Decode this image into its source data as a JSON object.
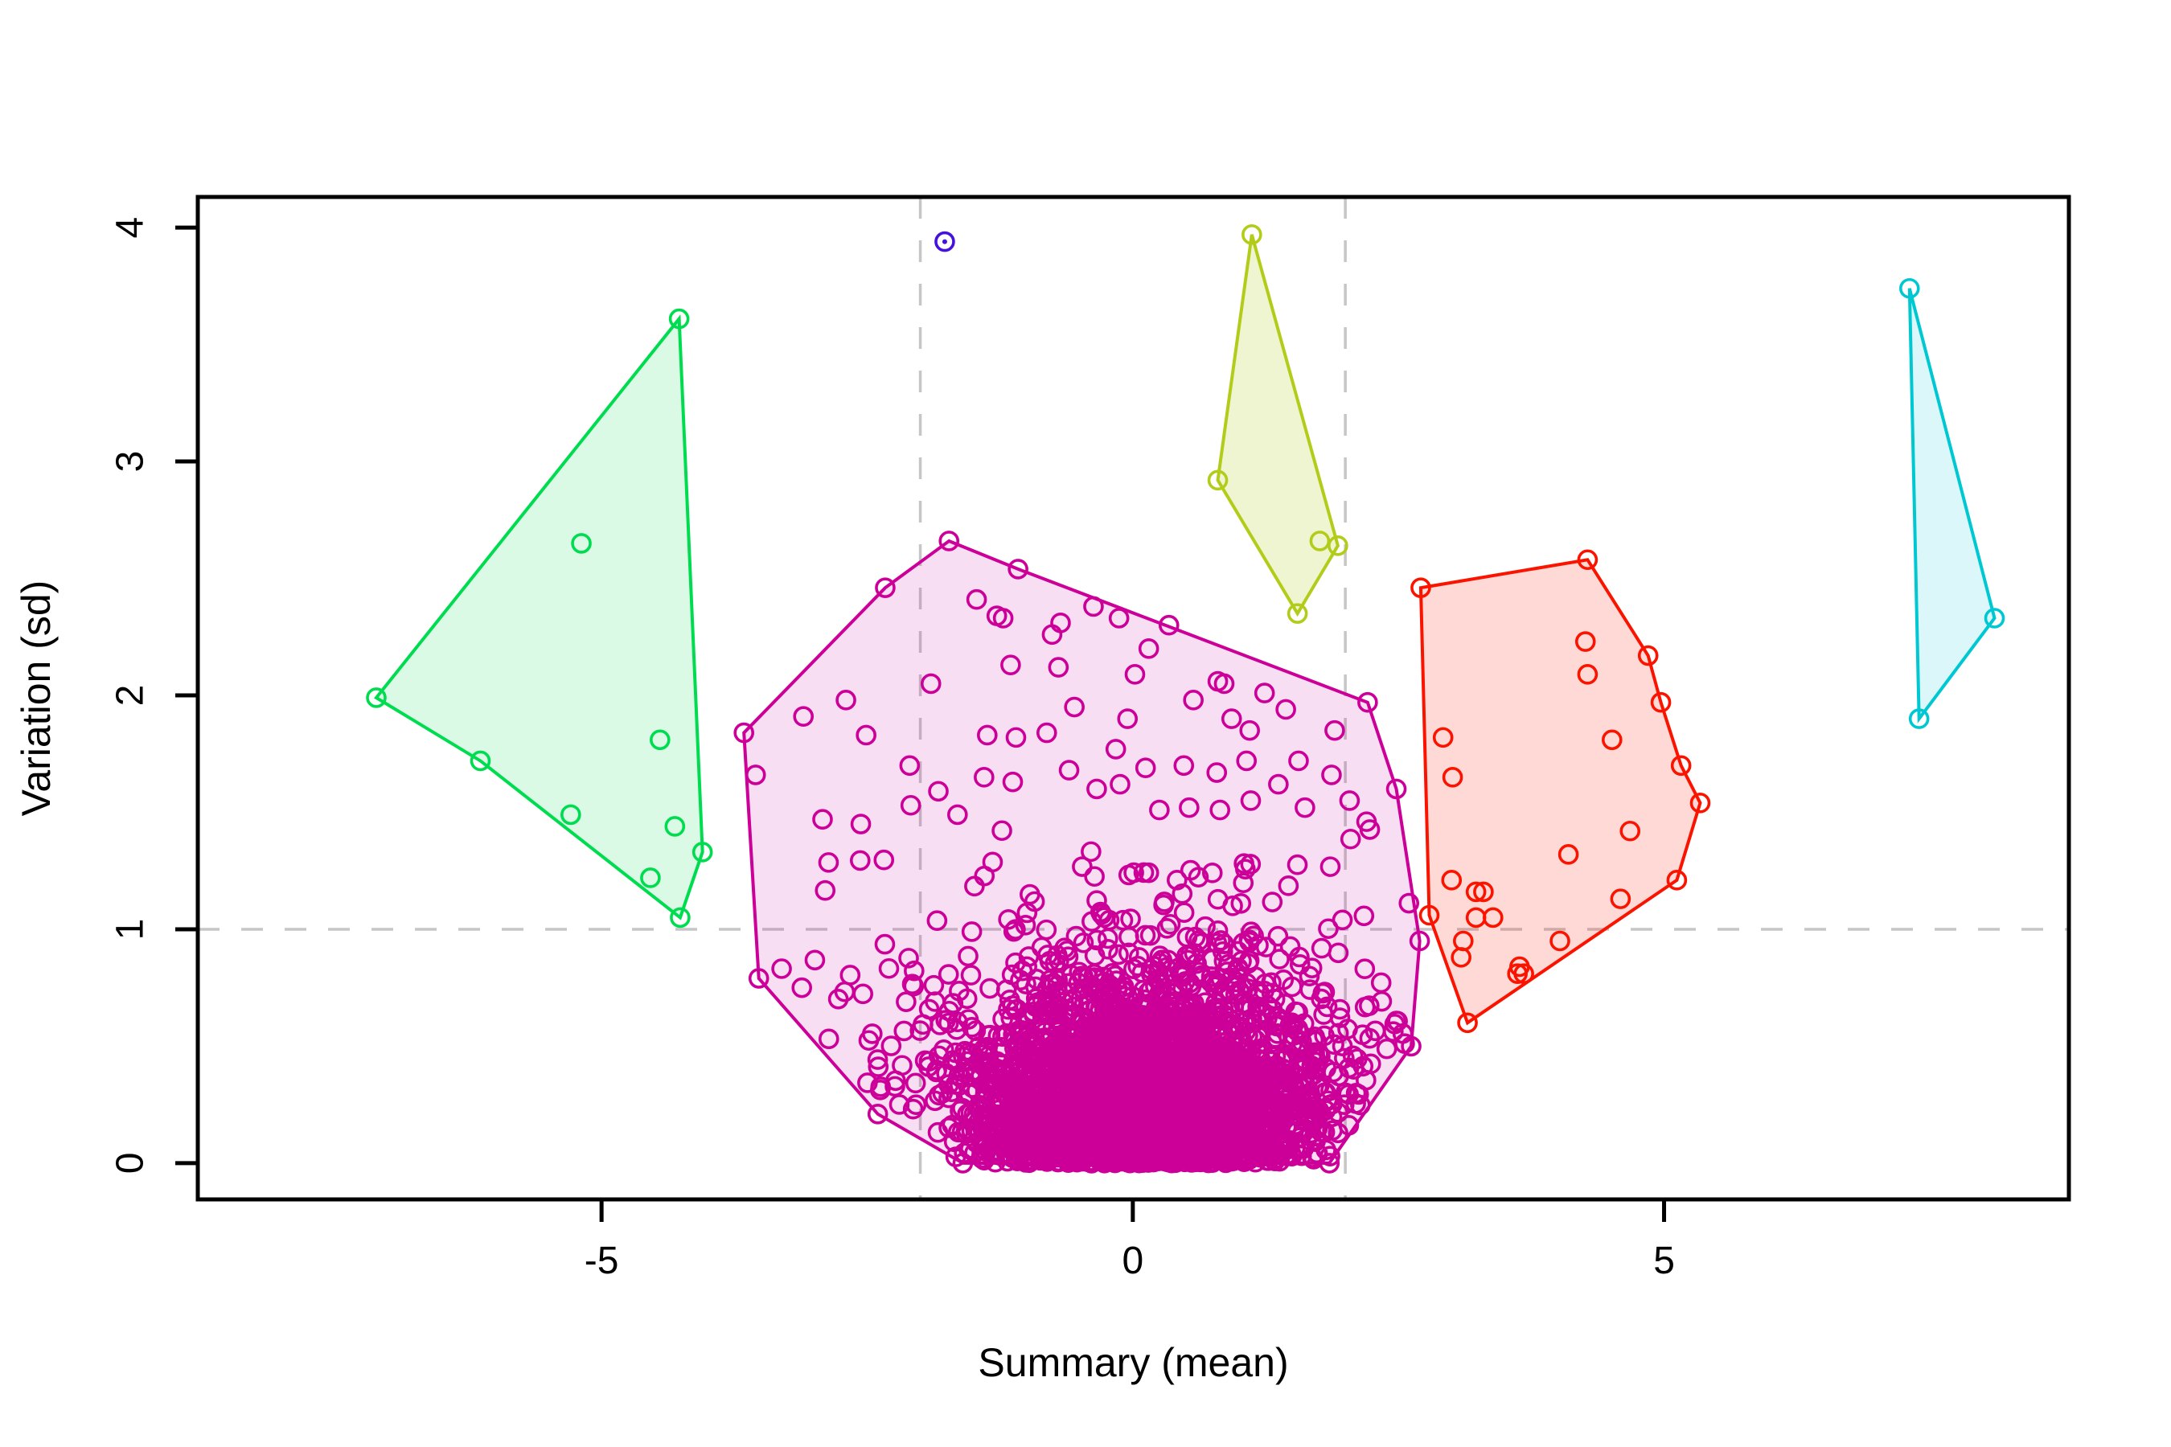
{
  "chart_data": {
    "type": "scatter",
    "title": "",
    "xlabel": "Summary (mean)",
    "ylabel": "Variation (sd)",
    "xlim": [
      -8.8,
      8.81
    ],
    "ylim": [
      -0.155,
      4.131
    ],
    "x_ticks": [
      -5,
      0,
      5
    ],
    "y_ticks": [
      0,
      1,
      2,
      3,
      4
    ],
    "grid": false,
    "legend": "none",
    "axis_color": "#000000",
    "reference_lines": {
      "style": "dashed",
      "color": "#C6C6C6",
      "vertical_x": [
        -2,
        2
      ],
      "horizontal_y": [
        1
      ]
    },
    "marker": {
      "shape": "open-circle",
      "radius": 11,
      "stroke_width": 3.6
    },
    "clusters": [
      {
        "name": "dense-magenta",
        "color": "#CC0099",
        "fill": "rgba(204,0,153,0.13)",
        "hull": [
          [
            -1.73,
            2.66
          ],
          [
            -1.08,
            2.54
          ],
          [
            2.21,
            1.97
          ],
          [
            2.48,
            1.6
          ],
          [
            2.7,
            0.95
          ],
          [
            2.62,
            0.5
          ],
          [
            1.85,
            0.0
          ],
          [
            -1.6,
            0.0
          ],
          [
            -2.4,
            0.21
          ],
          [
            -3.52,
            0.79
          ],
          [
            -3.66,
            1.84
          ],
          [
            -2.33,
            2.46
          ]
        ],
        "points": [
          [
            -1.47,
            2.41
          ],
          [
            -1.28,
            2.34
          ],
          [
            -1.22,
            2.33
          ],
          [
            -0.68,
            2.31
          ],
          [
            -0.37,
            2.38
          ],
          [
            -0.76,
            2.26
          ],
          [
            -0.13,
            2.33
          ],
          [
            0.34,
            2.3
          ],
          [
            -1.15,
            2.13
          ],
          [
            -0.7,
            2.12
          ],
          [
            0.02,
            2.09
          ],
          [
            0.57,
            1.98
          ],
          [
            0.8,
            2.06
          ],
          [
            0.86,
            2.05
          ],
          [
            1.24,
            2.01
          ],
          [
            1.44,
            1.94
          ],
          [
            -2.7,
            1.98
          ],
          [
            -3.1,
            1.91
          ],
          [
            -2.51,
            1.83
          ],
          [
            -2.1,
            1.7
          ],
          [
            -2.09,
            1.53
          ],
          [
            -1.83,
            1.59
          ],
          [
            -1.65,
            1.49
          ],
          [
            -1.37,
            1.83
          ],
          [
            -1.4,
            1.65
          ],
          [
            -1.1,
            1.82
          ],
          [
            -1.13,
            1.63
          ],
          [
            -0.81,
            1.84
          ],
          [
            -0.6,
            1.68
          ],
          [
            -0.34,
            1.6
          ],
          [
            -0.16,
            1.77
          ],
          [
            -0.12,
            1.62
          ],
          [
            0.12,
            1.69
          ],
          [
            0.25,
            1.51
          ],
          [
            0.48,
            1.7
          ],
          [
            0.53,
            1.52
          ],
          [
            0.79,
            1.67
          ],
          [
            0.82,
            1.51
          ],
          [
            1.07,
            1.72
          ],
          [
            1.11,
            1.55
          ],
          [
            1.37,
            1.62
          ],
          [
            1.56,
            1.72
          ],
          [
            1.62,
            1.52
          ],
          [
            1.87,
            1.66
          ],
          [
            2.04,
            1.55
          ],
          [
            2.2,
            1.46
          ],
          [
            -3.55,
            1.66
          ],
          [
            -2.92,
            1.47
          ],
          [
            -2.56,
            1.45
          ],
          [
            0.93,
            1.9
          ],
          [
            1.9,
            1.85
          ],
          [
            -0.05,
            1.9
          ],
          [
            -0.55,
            1.95
          ],
          [
            -1.9,
            2.05
          ],
          [
            0.15,
            2.2
          ],
          [
            1.1,
            1.85
          ]
        ],
        "dense_spec": {
          "note": "approximately 3800 additional unlabeled points forming a dense blob centered near x=0.1 with sd-like falloff in y from 0",
          "seed": 97531,
          "layers": [
            {
              "count": 2900,
              "x_mean": 0.15,
              "x_sd": 0.72,
              "y_min": 0.0,
              "y_sd": 0.33,
              "y_max": 1.3
            },
            {
              "count": 750,
              "x_mean": 0.1,
              "x_sd": 1.05,
              "y_min": 0.02,
              "y_sd": 0.52,
              "y_max": 1.45
            },
            {
              "count": 140,
              "x_uniform": [
                -3.4,
                2.6
              ],
              "y_min": 0.05,
              "y_offset": 0.15,
              "y_sd": 0.5,
              "y_max": 1.5
            }
          ]
        }
      },
      {
        "name": "green",
        "color": "#00DC50",
        "fill": "rgba(0,220,80,0.14)",
        "hull": [
          [
            -4.27,
            3.61
          ],
          [
            -4.05,
            1.33
          ],
          [
            -4.26,
            1.05
          ],
          [
            -6.14,
            1.72
          ],
          [
            -7.12,
            1.99
          ]
        ],
        "points": [
          [
            -5.19,
            2.65
          ],
          [
            -5.29,
            1.49
          ],
          [
            -4.45,
            1.81
          ],
          [
            -4.31,
            1.44
          ],
          [
            -4.54,
            1.22
          ]
        ]
      },
      {
        "name": "yellow-green",
        "color": "#B3CC1A",
        "fill": "rgba(179,204,26,0.20)",
        "hull": [
          [
            1.12,
            3.97
          ],
          [
            1.93,
            2.64
          ],
          [
            1.55,
            2.35
          ],
          [
            0.8,
            2.92
          ]
        ],
        "points": [
          [
            1.76,
            2.66
          ]
        ]
      },
      {
        "name": "red",
        "color": "#FA1400",
        "fill": "rgba(250,20,0,0.16)",
        "hull": [
          [
            2.71,
            2.46
          ],
          [
            4.28,
            2.58
          ],
          [
            4.85,
            2.17
          ],
          [
            4.97,
            1.97
          ],
          [
            5.16,
            1.7
          ],
          [
            5.34,
            1.54
          ],
          [
            5.12,
            1.21
          ],
          [
            3.15,
            0.6
          ],
          [
            2.79,
            1.06
          ]
        ],
        "points": [
          [
            4.26,
            2.23
          ],
          [
            4.28,
            2.09
          ],
          [
            2.92,
            1.82
          ],
          [
            4.51,
            1.81
          ],
          [
            3.01,
            1.65
          ],
          [
            4.68,
            1.42
          ],
          [
            4.1,
            1.32
          ],
          [
            3.0,
            1.21
          ],
          [
            3.23,
            1.16
          ],
          [
            3.3,
            1.16
          ],
          [
            3.23,
            1.05
          ],
          [
            3.39,
            1.05
          ],
          [
            4.59,
            1.13
          ],
          [
            3.11,
            0.95
          ],
          [
            3.09,
            0.88
          ],
          [
            4.02,
            0.95
          ],
          [
            3.64,
            0.84
          ],
          [
            3.62,
            0.81
          ],
          [
            3.68,
            0.81
          ]
        ]
      },
      {
        "name": "cyan",
        "color": "#00C8D2",
        "fill": "rgba(0,200,210,0.14)",
        "hull": [
          [
            7.31,
            3.74
          ],
          [
            8.11,
            2.33
          ],
          [
            7.4,
            1.9
          ]
        ],
        "points": []
      },
      {
        "name": "blue-singleton",
        "color": "#4411DD",
        "fill": "none",
        "hull": [],
        "points": [
          [
            -1.77,
            3.94
          ]
        ],
        "center_dot": true
      }
    ]
  }
}
